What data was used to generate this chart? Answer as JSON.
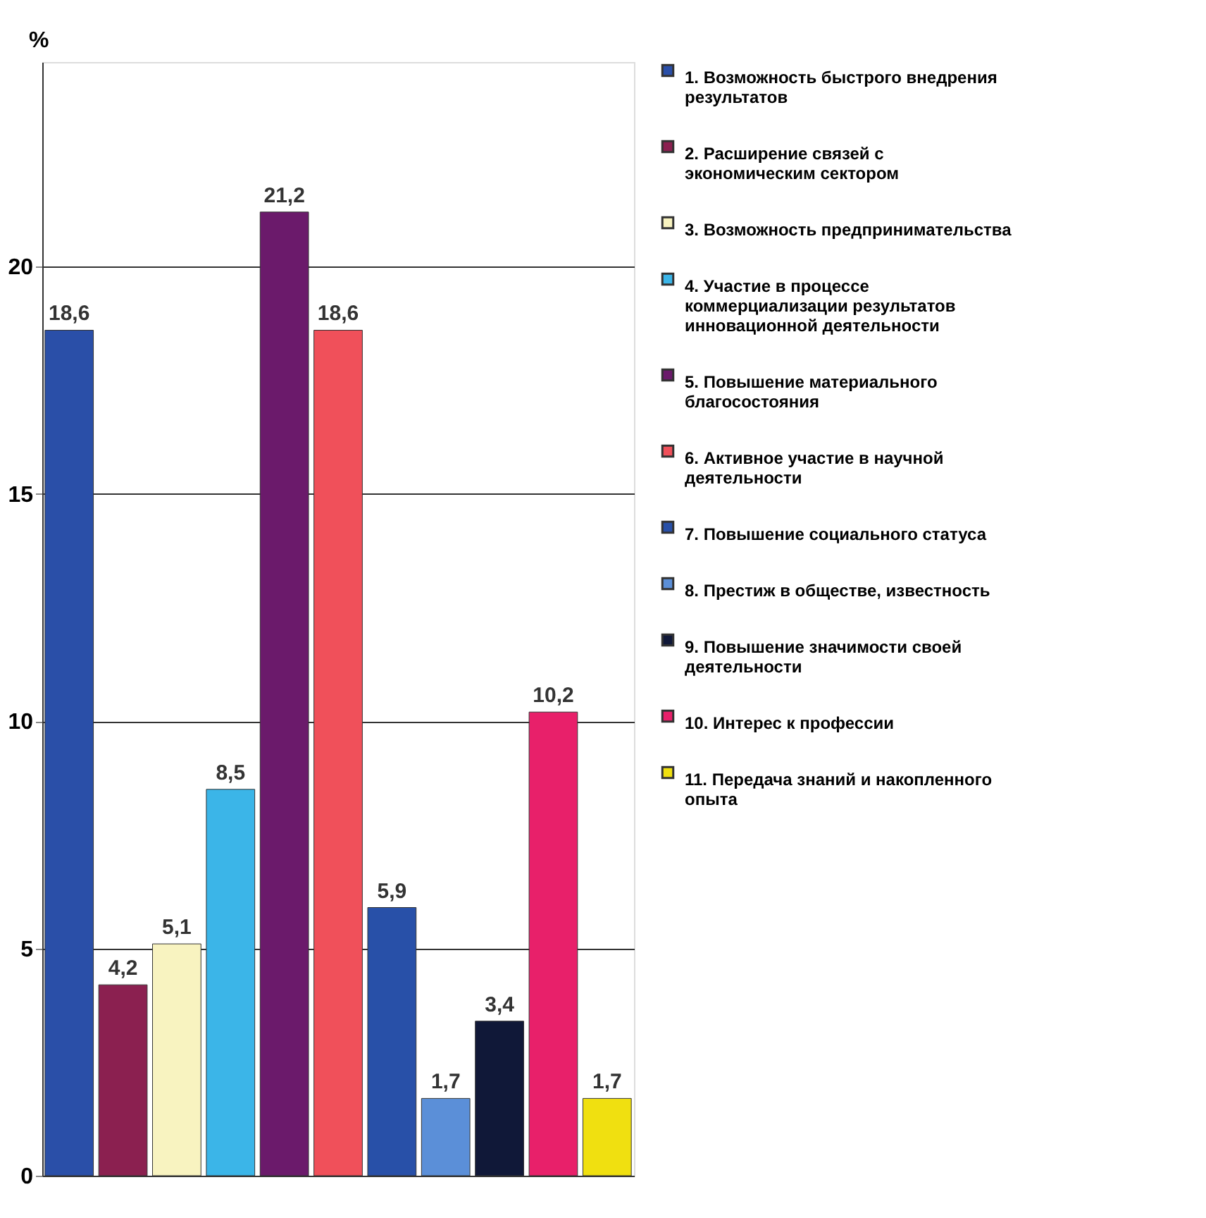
{
  "chart_data": {
    "type": "bar",
    "ylabel": "%",
    "categories": [
      null,
      null,
      null,
      null,
      null,
      null,
      null,
      null,
      null,
      null,
      null
    ],
    "series": [
      {
        "name": "1. Возможность быстрого внедрения результатов",
        "color": "#2a4fa8",
        "values": [
          18.6,
          null,
          null,
          null,
          null,
          null,
          null,
          null,
          null,
          null,
          null
        ],
        "value_labels": [
          "18,6",
          null,
          null,
          null,
          null,
          null,
          null,
          null,
          null,
          null,
          null
        ]
      },
      {
        "name": "2. Расширение связей с экономическим сектором",
        "color": "#8b2050",
        "values": [
          null,
          4.2,
          null,
          null,
          null,
          null,
          null,
          null,
          null,
          null,
          null
        ],
        "value_labels": [
          null,
          "4,2",
          null,
          null,
          null,
          null,
          null,
          null,
          null,
          null,
          null
        ]
      },
      {
        "name": "3. Возможность предпринимательства",
        "color": "#f8f3c0",
        "values": [
          null,
          null,
          5.1,
          null,
          null,
          null,
          null,
          null,
          null,
          null,
          null
        ],
        "value_labels": [
          null,
          null,
          "5,1",
          null,
          null,
          null,
          null,
          null,
          null,
          null,
          null
        ]
      },
      {
        "name": "4. Участие в процессе коммерциализации результатов инновационной деятельности",
        "color": "#3bb5e8",
        "values": [
          null,
          null,
          null,
          8.5,
          null,
          null,
          null,
          null,
          null,
          null,
          null
        ],
        "value_labels": [
          null,
          null,
          null,
          "8,5",
          null,
          null,
          null,
          null,
          null,
          null,
          null
        ]
      },
      {
        "name": "5. Повышение материального благосостояния",
        "color": "#6b1a6b",
        "values": [
          null,
          null,
          null,
          null,
          21.2,
          null,
          null,
          null,
          null,
          null,
          null
        ],
        "value_labels": [
          null,
          null,
          null,
          null,
          "21,2",
          null,
          null,
          null,
          null,
          null,
          null
        ]
      },
      {
        "name": "6. Активное участие в научной деятельности",
        "color": "#f0505a",
        "values": [
          null,
          null,
          null,
          null,
          null,
          18.6,
          null,
          null,
          null,
          null,
          null
        ],
        "value_labels": [
          null,
          null,
          null,
          null,
          null,
          "18,6",
          null,
          null,
          null,
          null,
          null
        ]
      },
      {
        "name": "7. Повышение социального статуса",
        "color": "#2850a8",
        "values": [
          null,
          null,
          null,
          null,
          null,
          null,
          5.9,
          null,
          null,
          null,
          null
        ],
        "value_labels": [
          null,
          null,
          null,
          null,
          null,
          null,
          "5,9",
          null,
          null,
          null,
          null
        ]
      },
      {
        "name": "8. Престиж в обществе, известность",
        "color": "#5b8fd8",
        "values": [
          null,
          null,
          null,
          null,
          null,
          null,
          null,
          1.7,
          null,
          null,
          null
        ],
        "value_labels": [
          null,
          null,
          null,
          null,
          null,
          null,
          null,
          "1,7",
          null,
          null,
          null
        ]
      },
      {
        "name": "9. Повышение значимости своей деятельности",
        "color": "#101838",
        "values": [
          null,
          null,
          null,
          null,
          null,
          null,
          null,
          null,
          3.4,
          null,
          null
        ],
        "value_labels": [
          null,
          null,
          null,
          null,
          null,
          null,
          null,
          null,
          "3,4",
          null,
          null
        ]
      },
      {
        "name": "10. Интерес к профессии",
        "color": "#e8206a",
        "values": [
          null,
          null,
          null,
          null,
          null,
          null,
          null,
          null,
          null,
          10.2,
          null
        ],
        "value_labels": [
          null,
          null,
          null,
          null,
          null,
          null,
          null,
          null,
          null,
          "10,2",
          null
        ]
      },
      {
        "name": "11. Передача знаний и накопленного опыта",
        "color": "#f0e010",
        "values": [
          null,
          null,
          null,
          null,
          null,
          null,
          null,
          null,
          null,
          null,
          1.7
        ],
        "value_labels": [
          null,
          null,
          null,
          null,
          null,
          null,
          null,
          null,
          null,
          null,
          "1,7"
        ]
      }
    ],
    "ylim": [
      0,
      24.5
    ],
    "yticks": [
      0,
      5,
      10,
      15,
      20
    ],
    "grid": "y",
    "legend": "right",
    "tick_labels": "y"
  }
}
